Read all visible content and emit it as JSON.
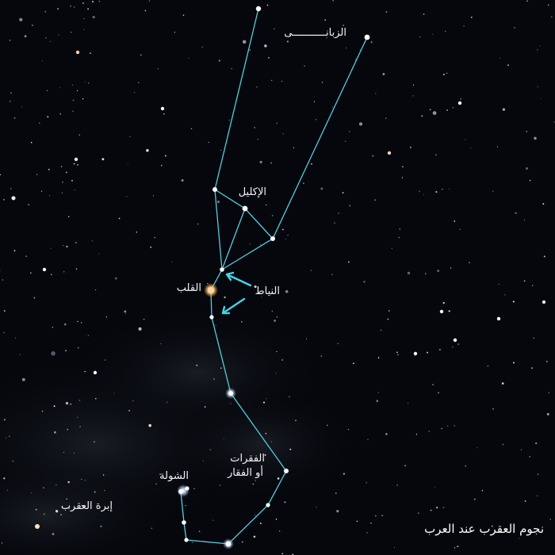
{
  "labels": {
    "zubana": "الزبانـــــــــــى",
    "iklil": "الإكليل",
    "qalb": "القلب",
    "niyat": "النياط",
    "fiqrat_line1": "الفقرات",
    "fiqrat_line2": "أو الفقار",
    "shawla": "الشولة",
    "ibra": "إبرة العقرب"
  },
  "caption": "نجوم العقرب عند العرب",
  "colors": {
    "sky": "#05070d",
    "line": "#4fd0e0",
    "arrow": "#40d8e8",
    "antares": "#ffc47a",
    "text": "#f2f4f8"
  }
}
